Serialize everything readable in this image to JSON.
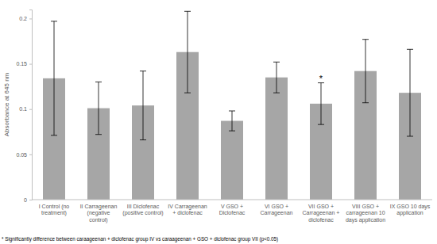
{
  "chart_data": {
    "type": "bar",
    "y_label": "Absorbance at 645 nm",
    "categories": [
      "I Control (no treatment)",
      "II Carrageenan (negative control)",
      "III Diclofenac (positive control)",
      "IV Carrageenan + diclofenac",
      "V GSO + Diclofenac",
      "VI GSO + Carrageenan",
      "VII GSO + Carrageenan + diclofenac",
      "VIII GSO + carrageenan 10 days application",
      "IX GSO 10 days application"
    ],
    "values": [
      0.134,
      0.101,
      0.104,
      0.163,
      0.087,
      0.135,
      0.106,
      0.142,
      0.118
    ],
    "errors": [
      0.063,
      0.029,
      0.038,
      0.045,
      0.011,
      0.017,
      0.023,
      0.035,
      0.048
    ],
    "color": "#a6a6a6",
    "ylim": [
      0,
      0.21
    ],
    "yticks": [
      0,
      0.05,
      0.1,
      0.15,
      0.2
    ],
    "grid": false,
    "annotations": [
      {
        "text": "*",
        "category": "VII GSO + Carrageenan + diclofenac"
      }
    ],
    "footnote": "* Significantly difference between caraageenan + diclofenac group IV vs caraageenan + GSO + diclofenac group VII (p<0.05)"
  }
}
